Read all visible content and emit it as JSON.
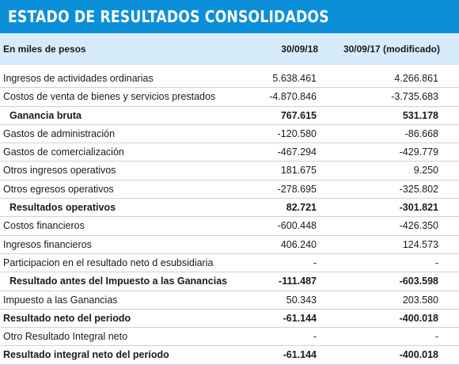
{
  "title": "ESTADO DE RESULTADOS CONSOLIDADOS",
  "header": {
    "unit_label": "En miles de pesos",
    "col1": "30/09/18",
    "col2": "30/09/17 (modificado)"
  },
  "colors": {
    "title_bg": "#0b8fd8",
    "header_bg": "#d6ecfb",
    "row_rule": "#bcd7ea"
  },
  "rows": [
    {
      "label": "Ingresos de actividades ordinarias",
      "v1": "5.638.461",
      "v2": "4.266.861"
    },
    {
      "label": "Costos de venta de bienes y servicios prestados",
      "v1": "-4.870.846",
      "v2": "-3.735.683"
    },
    {
      "label": "Ganancia bruta",
      "v1": "767.615",
      "v2": "531.178"
    },
    {
      "label": "Gastos de administración",
      "v1": "-120.580",
      "v2": "-86.668"
    },
    {
      "label": "Gastos de comercialización",
      "v1": "-467.294",
      "v2": "-429.779"
    },
    {
      "label": "Otros ingresos operativos",
      "v1": "181.675",
      "v2": "9.250"
    },
    {
      "label": "Otros egresos operativos",
      "v1": "-278.695",
      "v2": "-325.802"
    },
    {
      "label": "Resultados operativos",
      "v1": "82.721",
      "v2": "-301.821"
    },
    {
      "label": "Costos financieros",
      "v1": "-600.448",
      "v2": "-426.350"
    },
    {
      "label": "Ingresos financieros",
      "v1": "406.240",
      "v2": "124.573"
    },
    {
      "label": "Participacion en el resultado neto d esubsidiaria",
      "v1": "-",
      "v2": "-"
    },
    {
      "label": "Resultado antes del Impuesto a las Ganancias",
      "v1": "-111.487",
      "v2": "-603.598"
    },
    {
      "label": "Impuesto a las Ganancias",
      "v1": "50.343",
      "v2": "203.580"
    },
    {
      "label": "Resultado neto del periodo",
      "v1": "-61.144",
      "v2": "-400.018"
    },
    {
      "label": "Otro Resultado Integral neto",
      "v1": "-",
      "v2": "-"
    },
    {
      "label": "Resultado integral neto del período",
      "v1": "-61.144",
      "v2": "-400.018"
    }
  ]
}
